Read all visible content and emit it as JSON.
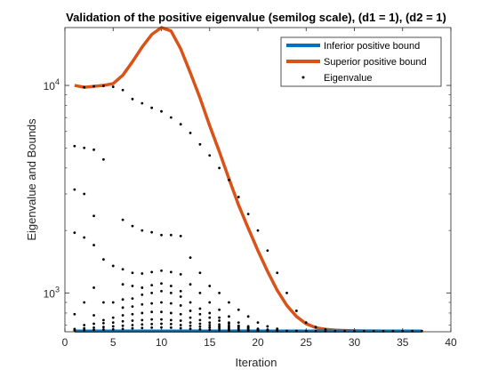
{
  "chart_data": {
    "type": "line",
    "title": "Validation of the positive eigenvalue (semilog scale), (d1 = 1), (d2 = 1)",
    "xlabel": "Iteration",
    "ylabel": "Eigenvalue and Bounds",
    "xlim": [
      0,
      40
    ],
    "ylim": [
      650,
      19000
    ],
    "yscale": "log",
    "grid": false,
    "legend_position": "top-right",
    "x_ticks": [
      0,
      5,
      10,
      15,
      20,
      25,
      30,
      35,
      40
    ],
    "y_ticks": [
      {
        "value": 1000,
        "base": "10",
        "exp": "3"
      },
      {
        "value": 10000,
        "base": "10",
        "exp": "4"
      }
    ],
    "series": [
      {
        "name": "Inferior positive bound",
        "color": "#0072BD",
        "x": [
          1,
          37
        ],
        "y": [
          655,
          655
        ]
      },
      {
        "name": "Superior positive bound",
        "color": "#D95319",
        "x": [
          1,
          2,
          3,
          4,
          5,
          6,
          7,
          8,
          9,
          10,
          11,
          12,
          13,
          14,
          15,
          16,
          17,
          18,
          19,
          20,
          21,
          22,
          23,
          24,
          25,
          26,
          27,
          28,
          29,
          30,
          31,
          32,
          33,
          34,
          35,
          36,
          37
        ],
        "y": [
          10000,
          9800,
          9900,
          10000,
          10200,
          11200,
          13000,
          15300,
          17600,
          19000,
          18300,
          15000,
          11500,
          8700,
          6400,
          4800,
          3550,
          2650,
          2050,
          1600,
          1270,
          1030,
          870,
          770,
          710,
          680,
          668,
          662,
          659,
          657,
          656,
          656,
          655,
          655,
          655,
          655,
          655
        ]
      },
      {
        "name": "Eigenvalue",
        "color": "#000000",
        "points": [
          [
            2,
            9800
          ],
          [
            3,
            9900
          ],
          [
            4,
            9950
          ],
          [
            5,
            9850
          ],
          [
            6,
            9500
          ],
          [
            7,
            8600
          ],
          [
            8,
            8200
          ],
          [
            9,
            7800
          ],
          [
            10,
            7500
          ],
          [
            11,
            7000
          ],
          [
            12,
            6500
          ],
          [
            13,
            5900
          ],
          [
            14,
            5200
          ],
          [
            15,
            4600
          ],
          [
            16,
            4000
          ],
          [
            17,
            3500
          ],
          [
            18,
            2900
          ],
          [
            19,
            2400
          ],
          [
            20,
            2000
          ],
          [
            21,
            1600
          ],
          [
            22,
            1250
          ],
          [
            23,
            1000
          ],
          [
            24,
            820
          ],
          [
            25,
            720
          ],
          [
            26,
            685
          ],
          [
            27,
            668
          ],
          [
            1,
            5100
          ],
          [
            2,
            5000
          ],
          [
            3,
            4900
          ],
          [
            4,
            4400
          ],
          [
            1,
            3150
          ],
          [
            2,
            3000
          ],
          [
            3,
            2350
          ],
          [
            6,
            2250
          ],
          [
            7,
            2100
          ],
          [
            8,
            2000
          ],
          [
            9,
            1960
          ],
          [
            10,
            1900
          ],
          [
            11,
            1900
          ],
          [
            12,
            1880
          ],
          [
            13,
            1480
          ],
          [
            14,
            1250
          ],
          [
            15,
            1080
          ],
          [
            16,
            1000
          ],
          [
            17,
            900
          ],
          [
            18,
            830
          ],
          [
            19,
            770
          ],
          [
            20,
            720
          ],
          [
            21,
            690
          ],
          [
            22,
            672
          ],
          [
            1,
            1950
          ],
          [
            2,
            1850
          ],
          [
            3,
            1700
          ],
          [
            4,
            1450
          ],
          [
            5,
            1350
          ],
          [
            6,
            1300
          ],
          [
            7,
            1250
          ],
          [
            8,
            1240
          ],
          [
            9,
            1260
          ],
          [
            10,
            1280
          ],
          [
            11,
            1260
          ],
          [
            12,
            1230
          ],
          [
            13,
            1100
          ],
          [
            14,
            1000
          ],
          [
            15,
            900
          ],
          [
            16,
            830
          ],
          [
            17,
            770
          ],
          [
            18,
            720
          ],
          [
            19,
            690
          ],
          [
            3,
            1060
          ],
          [
            6,
            1100
          ],
          [
            7,
            1080
          ],
          [
            8,
            1060
          ],
          [
            9,
            1090
          ],
          [
            10,
            1110
          ],
          [
            11,
            1080
          ],
          [
            12,
            1020
          ],
          [
            1,
            790
          ],
          [
            2,
            900
          ],
          [
            3,
            780
          ],
          [
            4,
            900
          ],
          [
            5,
            900
          ],
          [
            6,
            930
          ],
          [
            7,
            940
          ],
          [
            8,
            980
          ],
          [
            9,
            1000
          ],
          [
            10,
            1020
          ],
          [
            11,
            1000
          ],
          [
            12,
            960
          ],
          [
            13,
            900
          ],
          [
            14,
            840
          ],
          [
            15,
            800
          ],
          [
            16,
            760
          ],
          [
            17,
            720
          ],
          [
            18,
            695
          ],
          [
            19,
            680
          ],
          [
            20,
            672
          ],
          [
            21,
            666
          ],
          [
            22,
            662
          ],
          [
            6,
            850
          ],
          [
            7,
            860
          ],
          [
            8,
            880
          ],
          [
            9,
            890
          ],
          [
            10,
            900
          ],
          [
            11,
            890
          ],
          [
            12,
            870
          ],
          [
            13,
            820
          ],
          [
            14,
            790
          ],
          [
            15,
            760
          ],
          [
            16,
            735
          ],
          [
            17,
            712
          ],
          [
            18,
            695
          ],
          [
            19,
            684
          ],
          [
            4,
            740
          ],
          [
            5,
            760
          ],
          [
            6,
            780
          ],
          [
            7,
            790
          ],
          [
            8,
            800
          ],
          [
            9,
            810
          ],
          [
            10,
            810
          ],
          [
            11,
            800
          ],
          [
            12,
            790
          ],
          [
            13,
            760
          ],
          [
            14,
            740
          ],
          [
            15,
            720
          ],
          [
            16,
            705
          ],
          [
            17,
            695
          ],
          [
            18,
            685
          ],
          [
            19,
            675
          ],
          [
            20,
            668
          ],
          [
            21,
            663
          ],
          [
            2,
            700
          ],
          [
            3,
            710
          ],
          [
            4,
            715
          ],
          [
            5,
            720
          ],
          [
            6,
            730
          ],
          [
            7,
            735
          ],
          [
            8,
            740
          ],
          [
            9,
            745
          ],
          [
            10,
            745
          ],
          [
            11,
            740
          ],
          [
            12,
            735
          ],
          [
            13,
            720
          ],
          [
            14,
            710
          ],
          [
            15,
            700
          ],
          [
            16,
            690
          ],
          [
            17,
            683
          ],
          [
            18,
            676
          ],
          [
            19,
            670
          ],
          [
            20,
            665
          ],
          [
            21,
            662
          ],
          [
            1,
            670
          ],
          [
            2,
            675
          ],
          [
            3,
            680
          ],
          [
            4,
            685
          ],
          [
            5,
            690
          ],
          [
            6,
            695
          ],
          [
            7,
            700
          ],
          [
            8,
            705
          ],
          [
            9,
            708
          ],
          [
            10,
            710
          ],
          [
            11,
            708
          ],
          [
            12,
            700
          ],
          [
            13,
            695
          ],
          [
            14,
            688
          ],
          [
            15,
            682
          ],
          [
            16,
            676
          ],
          [
            17,
            671
          ],
          [
            18,
            667
          ],
          [
            19,
            664
          ],
          [
            20,
            661
          ],
          [
            1,
            660
          ],
          [
            2,
            662
          ],
          [
            3,
            664
          ],
          [
            4,
            666
          ],
          [
            5,
            668
          ],
          [
            6,
            670
          ],
          [
            7,
            675
          ],
          [
            8,
            678
          ],
          [
            9,
            680
          ],
          [
            10,
            682
          ],
          [
            11,
            680
          ],
          [
            12,
            676
          ],
          [
            13,
            672
          ],
          [
            14,
            668
          ],
          [
            15,
            665
          ],
          [
            16,
            662
          ],
          [
            17,
            660
          ],
          [
            18,
            659
          ],
          [
            19,
            658
          ],
          [
            20,
            657
          ],
          [
            21,
            657
          ],
          [
            22,
            656
          ],
          [
            23,
            656
          ],
          [
            24,
            656
          ],
          [
            25,
            655
          ],
          [
            26,
            655
          ],
          [
            27,
            655
          ],
          [
            28,
            655
          ],
          [
            29,
            655
          ],
          [
            30,
            655
          ],
          [
            31,
            655
          ],
          [
            32,
            655
          ],
          [
            33,
            655
          ],
          [
            34,
            655
          ],
          [
            35,
            655
          ],
          [
            36,
            655
          ],
          [
            37,
            655
          ]
        ]
      }
    ]
  }
}
